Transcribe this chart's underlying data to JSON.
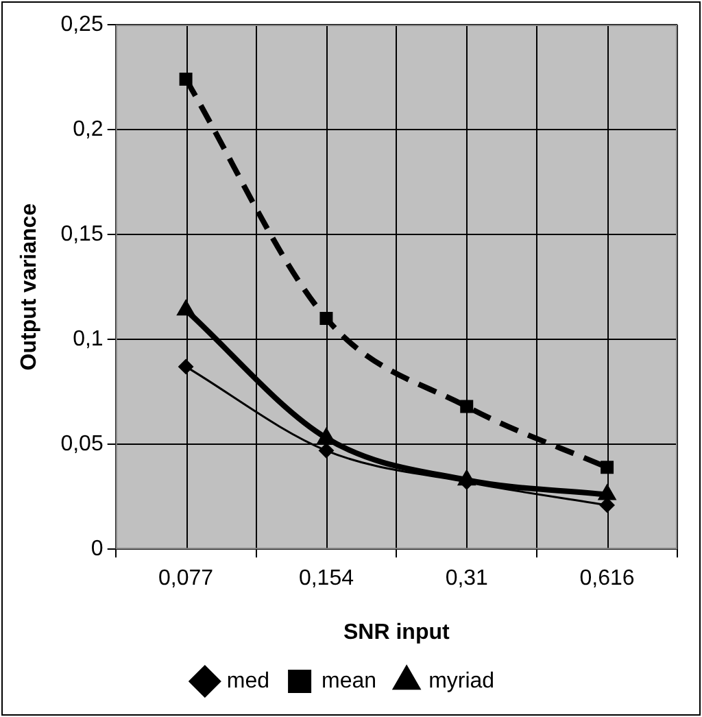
{
  "chart_data": {
    "type": "line",
    "xlabel": "SNR input",
    "ylabel": "Output variance",
    "categories": [
      "0,077",
      "0,154",
      "0,31",
      "0,616"
    ],
    "series": [
      {
        "name": "med",
        "color": "#000000",
        "marker": "diamond",
        "line_style": "solid",
        "values": [
          0.087,
          0.047,
          0.032,
          0.021
        ]
      },
      {
        "name": "mean",
        "color": "#000000",
        "marker": "square",
        "line_style": "dashed",
        "values": [
          0.224,
          0.11,
          0.068,
          0.039
        ]
      },
      {
        "name": "myriad",
        "color": "#000000",
        "marker": "triangle",
        "line_style": "solid",
        "values": [
          0.114,
          0.053,
          0.033,
          0.026
        ]
      }
    ],
    "ylim": [
      0,
      0.25
    ],
    "yticks": [
      {
        "value": 0,
        "label": "0"
      },
      {
        "value": 0.05,
        "label": "0,05"
      },
      {
        "value": 0.1,
        "label": "0,1"
      },
      {
        "value": 0.15,
        "label": "0,15"
      },
      {
        "value": 0.2,
        "label": "0,2"
      },
      {
        "value": 0.25,
        "label": "0,25"
      }
    ],
    "grid": true,
    "legend": "bottom"
  }
}
